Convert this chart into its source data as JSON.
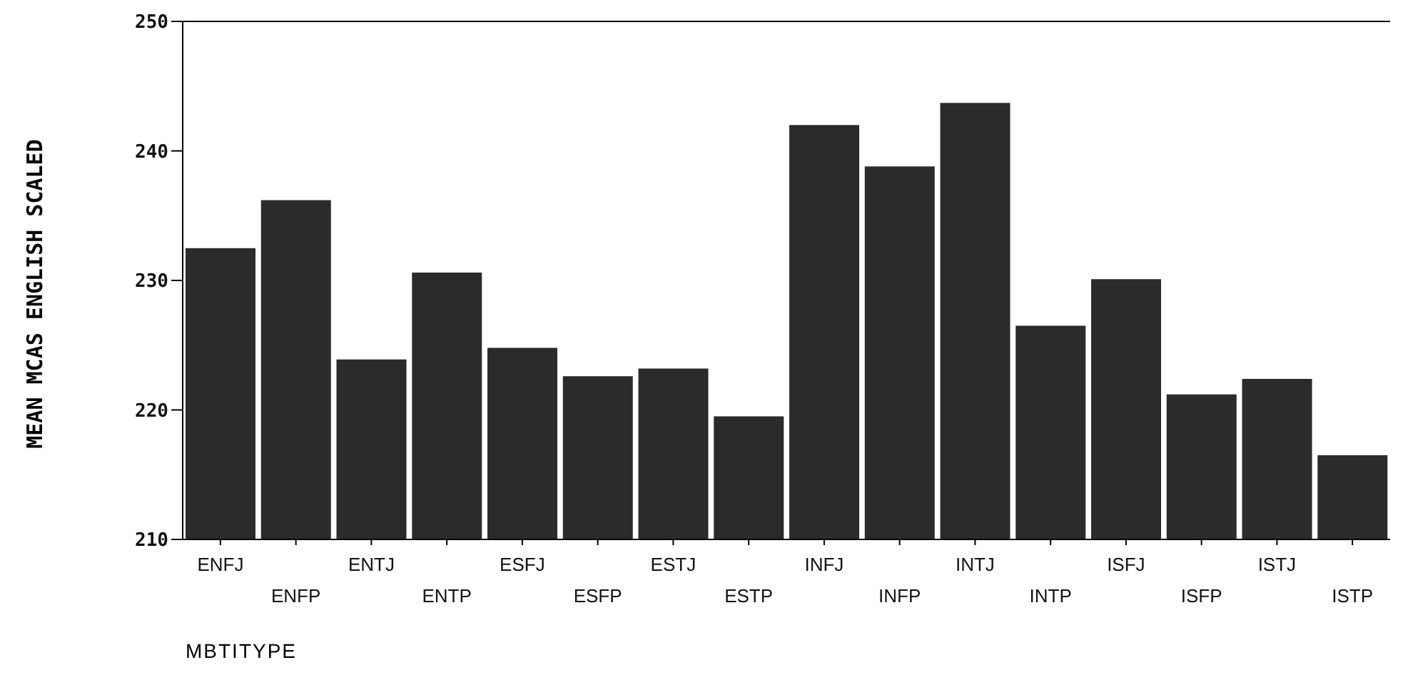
{
  "chart_data": {
    "type": "bar",
    "xlabel": "MBTITYPE",
    "ylabel": "MEAN MCAS ENGLISH SCALED",
    "categories": [
      "ENFJ",
      "ENFP",
      "ENTJ",
      "ENTP",
      "ESFJ",
      "ESFP",
      "ESTJ",
      "ESTP",
      "INFJ",
      "INFP",
      "INTJ",
      "INTP",
      "ISFJ",
      "ISFP",
      "ISTJ",
      "ISTP"
    ],
    "values": [
      232.5,
      236.2,
      223.9,
      230.6,
      224.8,
      222.6,
      223.2,
      219.5,
      242.0,
      238.8,
      243.7,
      226.5,
      230.1,
      221.2,
      222.4,
      216.5
    ],
    "color": "#2b2b2b",
    "ylim": [
      210,
      250
    ],
    "yticks": [
      210,
      220,
      230,
      240,
      250
    ],
    "grid": false,
    "legend": false
  }
}
